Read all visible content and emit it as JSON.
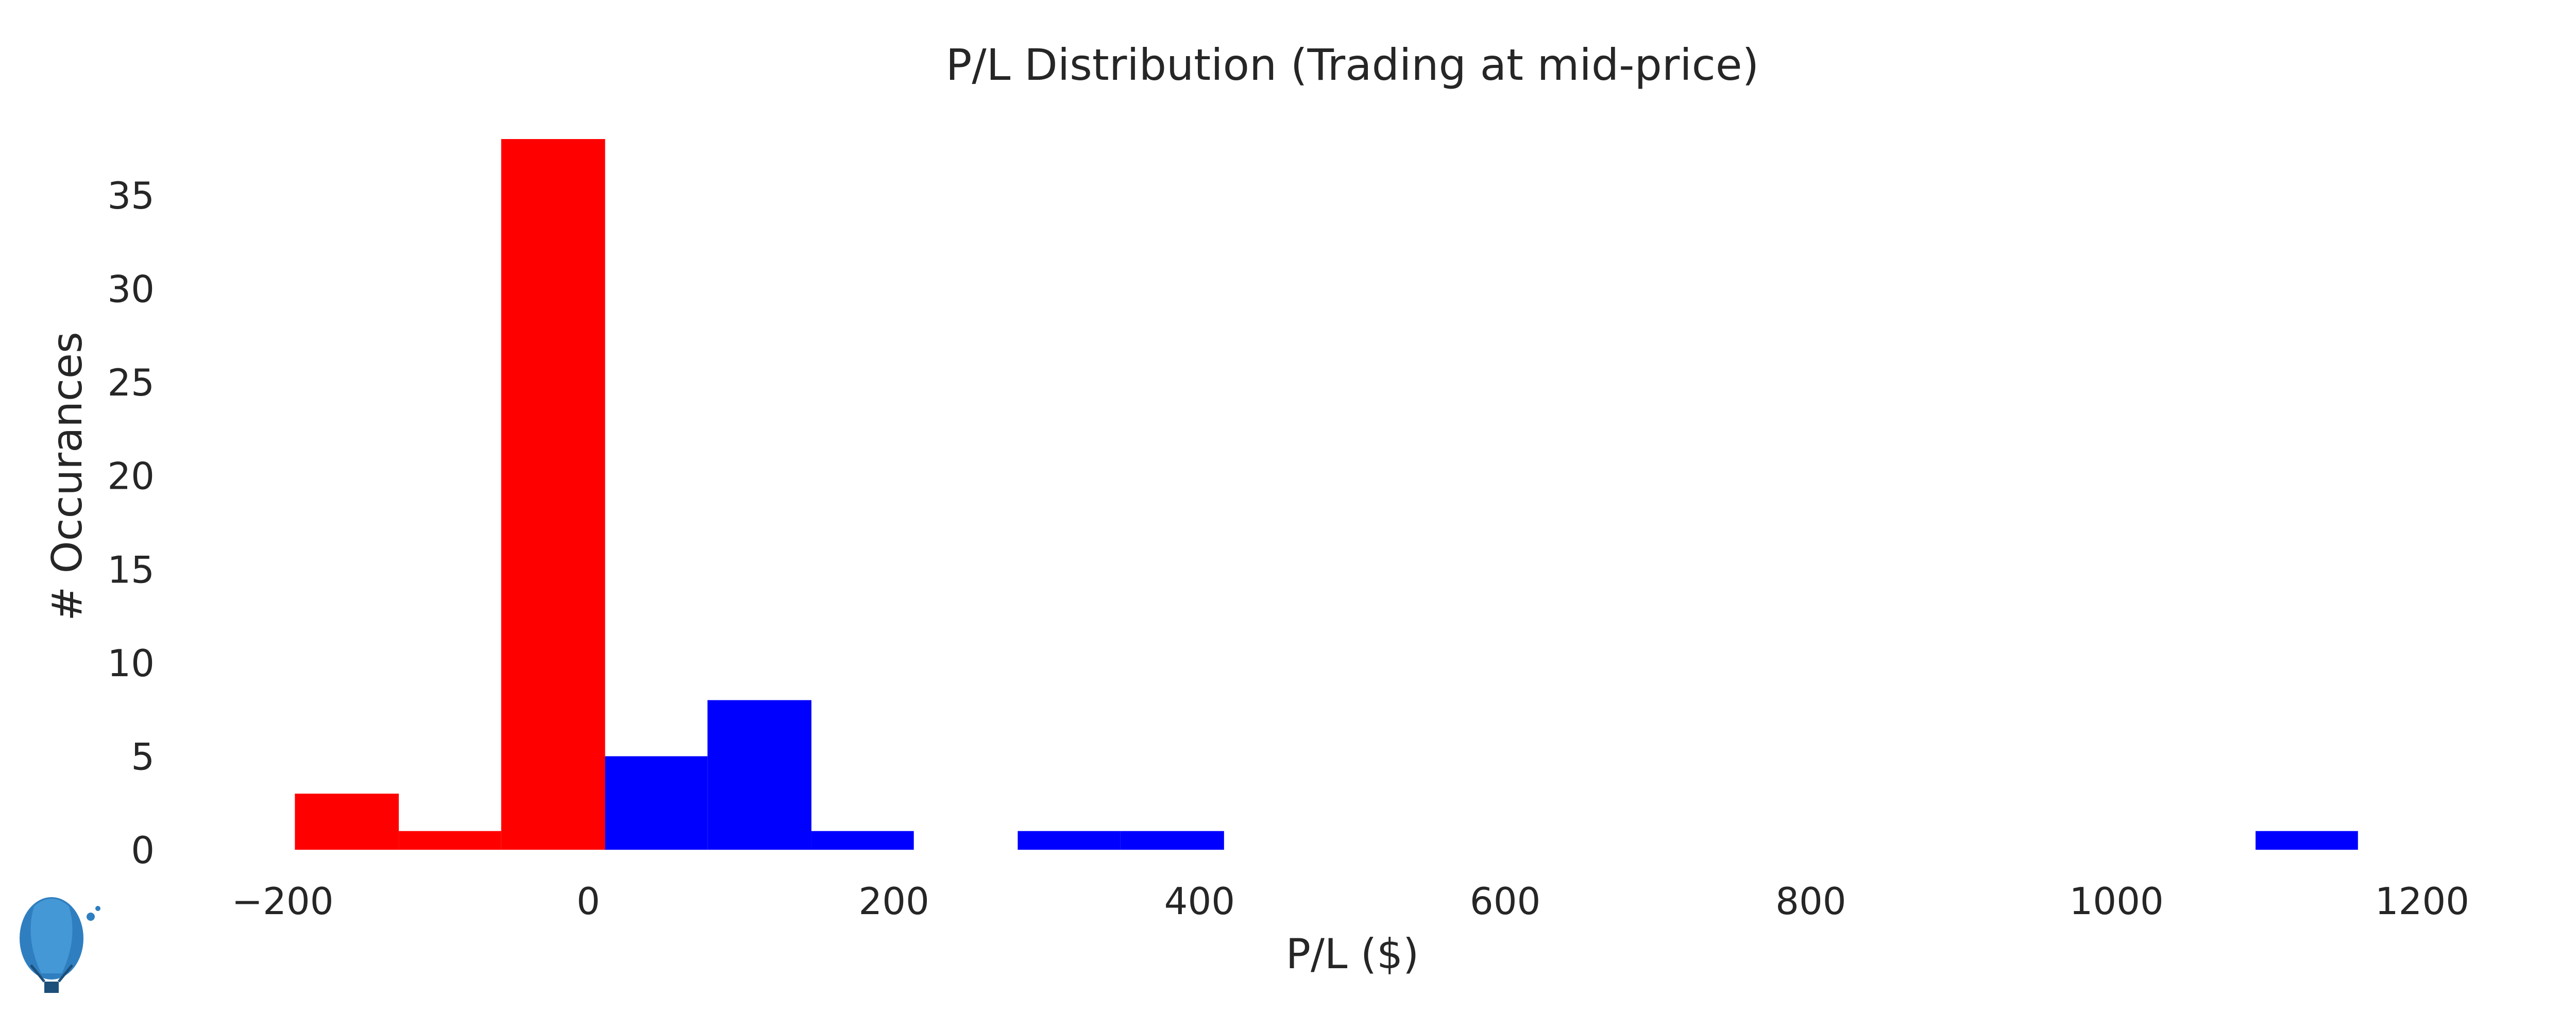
{
  "chart_data": {
    "type": "bar",
    "title": "P/L Distribution (Trading at mid-price)",
    "xlabel": "P/L ($)",
    "ylabel": "# Occurances",
    "xlim": [
      -240,
      1240
    ],
    "ylim": [
      0,
      38
    ],
    "xticks": [
      -200,
      0,
      200,
      400,
      600,
      800,
      1000,
      1200
    ],
    "xtick_labels": [
      "−200",
      "0",
      "200",
      "400",
      "600",
      "800",
      "1000",
      "1200"
    ],
    "yticks": [
      0,
      5,
      10,
      15,
      20,
      25,
      30,
      35
    ],
    "grid": false,
    "colors": {
      "loss": "#ff0000",
      "profit": "#0000ff"
    },
    "series": [
      {
        "color": "#ff0000",
        "bins": [
          {
            "x0": -192,
            "x1": -124,
            "count": 3
          },
          {
            "x0": -124,
            "x1": -57,
            "count": 1
          },
          {
            "x0": -57,
            "x1": 11,
            "count": 38
          }
        ]
      },
      {
        "color": "#0000ff",
        "bins": [
          {
            "x0": 11,
            "x1": 78,
            "count": 5
          },
          {
            "x0": 78,
            "x1": 146,
            "count": 8
          },
          {
            "x0": 146,
            "x1": 213,
            "count": 1
          },
          {
            "x0": 213,
            "x1": 281,
            "count": 0
          },
          {
            "x0": 281,
            "x1": 348,
            "count": 1
          },
          {
            "x0": 348,
            "x1": 416,
            "count": 1
          },
          {
            "x0": 1091,
            "x1": 1158,
            "count": 1
          }
        ]
      }
    ]
  },
  "logo": {
    "icon": "hot-air-balloon-icon"
  }
}
